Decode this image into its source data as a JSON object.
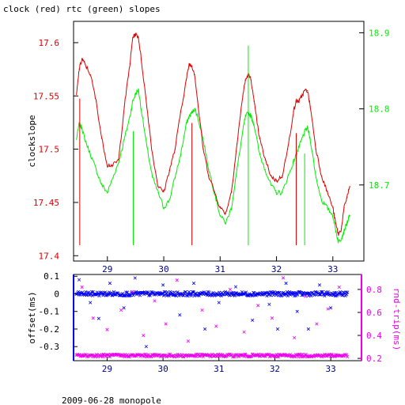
{
  "title": "clock (red) rtc (green) slopes",
  "footer": "2009-06-28 monopole",
  "colors": {
    "red": "#dd0000",
    "green": "#00ee00",
    "blue": "#0000ee",
    "magenta": "#ee00ee",
    "axis_top_x": "#000080"
  },
  "chart_data": [
    {
      "type": "line",
      "xlim": [
        28.4,
        33.55
      ],
      "ylabel": "clockslope",
      "ylim": [
        17.395,
        17.62
      ],
      "y2lim": [
        18.6,
        18.915
      ],
      "x_ticks": [
        29,
        30,
        31,
        32,
        33
      ],
      "y_ticks": [
        "17.4",
        "17.45",
        "17.5",
        "17.55",
        "17.6"
      ],
      "y2_ticks": [
        "18.7",
        "18.8",
        "18.9"
      ],
      "grid": false,
      "series": [
        {
          "name": "clock (red)",
          "axis": "left",
          "x": [
            28.45,
            28.5,
            28.55,
            28.6,
            28.7,
            28.8,
            28.9,
            29.0,
            29.1,
            29.2,
            29.3,
            29.4,
            29.45,
            29.5,
            29.55,
            29.6,
            29.7,
            29.8,
            29.9,
            30.0,
            30.1,
            30.2,
            30.3,
            30.4,
            30.45,
            30.5,
            30.55,
            30.6,
            30.7,
            30.8,
            30.9,
            31.0,
            31.1,
            31.2,
            31.3,
            31.4,
            31.45,
            31.5,
            31.55,
            31.6,
            31.7,
            31.8,
            31.9,
            32.0,
            32.1,
            32.2,
            32.3,
            32.35,
            32.4,
            32.45,
            32.5,
            32.55,
            32.6,
            32.7,
            32.8,
            32.9,
            33.0,
            33.05,
            33.1,
            33.15,
            33.2,
            33.25,
            33.3
          ],
          "y": [
            17.55,
            17.575,
            17.585,
            17.58,
            17.57,
            17.545,
            17.51,
            17.485,
            17.485,
            17.49,
            17.54,
            17.58,
            17.605,
            17.608,
            17.605,
            17.585,
            17.54,
            17.495,
            17.465,
            17.46,
            17.48,
            17.5,
            17.535,
            17.565,
            17.58,
            17.578,
            17.57,
            17.545,
            17.5,
            17.475,
            17.46,
            17.445,
            17.44,
            17.46,
            17.505,
            17.55,
            17.565,
            17.57,
            17.565,
            17.545,
            17.51,
            17.49,
            17.475,
            17.47,
            17.475,
            17.5,
            17.535,
            17.545,
            17.545,
            17.55,
            17.555,
            17.555,
            17.54,
            17.5,
            17.475,
            17.46,
            17.445,
            17.43,
            17.42,
            17.425,
            17.445,
            17.455,
            17.465
          ]
        },
        {
          "name": "rtc (green)",
          "axis": "right",
          "x": [
            28.45,
            28.5,
            28.55,
            28.6,
            28.7,
            28.8,
            28.9,
            29.0,
            29.1,
            29.2,
            29.3,
            29.4,
            29.45,
            29.5,
            29.55,
            29.6,
            29.7,
            29.8,
            29.9,
            30.0,
            30.1,
            30.2,
            30.3,
            30.4,
            30.45,
            30.5,
            30.55,
            30.6,
            30.7,
            30.8,
            30.9,
            31.0,
            31.1,
            31.2,
            31.3,
            31.4,
            31.45,
            31.5,
            31.55,
            31.6,
            31.7,
            31.8,
            31.9,
            32.0,
            32.1,
            32.2,
            32.3,
            32.35,
            32.4,
            32.45,
            32.5,
            32.55,
            32.6,
            32.7,
            32.8,
            32.9,
            33.0,
            33.05,
            33.1,
            33.15,
            33.2,
            33.25,
            33.3
          ],
          "y": [
            18.76,
            18.78,
            18.775,
            18.76,
            18.74,
            18.72,
            18.7,
            18.69,
            18.71,
            18.73,
            18.76,
            18.79,
            18.81,
            18.82,
            18.825,
            18.8,
            18.75,
            18.71,
            18.69,
            18.67,
            18.68,
            18.71,
            18.74,
            18.78,
            18.79,
            18.795,
            18.8,
            18.79,
            18.76,
            18.72,
            18.69,
            18.66,
            18.65,
            18.67,
            18.72,
            18.77,
            18.79,
            18.795,
            18.79,
            18.78,
            18.74,
            18.72,
            18.7,
            18.69,
            18.69,
            18.71,
            18.73,
            18.74,
            18.75,
            18.76,
            18.77,
            18.775,
            18.76,
            18.71,
            18.68,
            18.67,
            18.66,
            18.64,
            18.625,
            18.63,
            18.64,
            18.65,
            18.66
          ]
        }
      ]
    },
    {
      "type": "scatter",
      "xlim": [
        28.4,
        33.55
      ],
      "ylabel": "offset(ms)",
      "y2label": "rnd-trip(ms)",
      "ylim": [
        -0.38,
        0.11
      ],
      "y2lim": [
        0.18,
        0.93
      ],
      "x_ticks": [
        29,
        30,
        31,
        32,
        33
      ],
      "y_ticks": [
        "0.1",
        "0",
        "-0.1",
        "-0.2",
        "-0.3"
      ],
      "y2_ticks": [
        "0.8",
        "0.6",
        "0.4",
        "0.2"
      ],
      "grid": false,
      "series": [
        {
          "name": "offset",
          "axis": "left",
          "marker": "x",
          "center": 0.0,
          "spread": 0.012,
          "outliers": [
            [
              28.5,
              0.08
            ],
            [
              28.7,
              -0.05
            ],
            [
              28.85,
              -0.14
            ],
            [
              29.05,
              0.06
            ],
            [
              29.3,
              -0.08
            ],
            [
              29.5,
              0.09
            ],
            [
              29.7,
              -0.3
            ],
            [
              30.0,
              0.05
            ],
            [
              30.3,
              -0.12
            ],
            [
              30.55,
              0.06
            ],
            [
              30.75,
              -0.2
            ],
            [
              31.0,
              -0.05
            ],
            [
              31.3,
              0.04
            ],
            [
              31.6,
              -0.15
            ],
            [
              31.9,
              -0.06
            ],
            [
              32.05,
              -0.2
            ],
            [
              32.2,
              0.06
            ],
            [
              32.4,
              -0.1
            ],
            [
              32.6,
              -0.2
            ],
            [
              32.8,
              0.05
            ],
            [
              33.0,
              -0.08
            ]
          ]
        },
        {
          "name": "rnd-trip",
          "axis": "right",
          "marker": "x",
          "center": 0.225,
          "spread": 0.012,
          "outliers": [
            [
              28.55,
              0.82
            ],
            [
              28.75,
              0.55
            ],
            [
              29.0,
              0.45
            ],
            [
              29.25,
              0.62
            ],
            [
              29.45,
              0.78
            ],
            [
              29.65,
              0.4
            ],
            [
              29.85,
              0.7
            ],
            [
              30.05,
              0.5
            ],
            [
              30.25,
              0.88
            ],
            [
              30.45,
              0.35
            ],
            [
              30.7,
              0.62
            ],
            [
              30.95,
              0.48
            ],
            [
              31.2,
              0.8
            ],
            [
              31.45,
              0.43
            ],
            [
              31.7,
              0.66
            ],
            [
              31.95,
              0.55
            ],
            [
              32.15,
              0.9
            ],
            [
              32.35,
              0.38
            ],
            [
              32.55,
              0.74
            ],
            [
              32.75,
              0.5
            ],
            [
              32.95,
              0.63
            ],
            [
              33.15,
              0.82
            ]
          ]
        }
      ]
    }
  ]
}
